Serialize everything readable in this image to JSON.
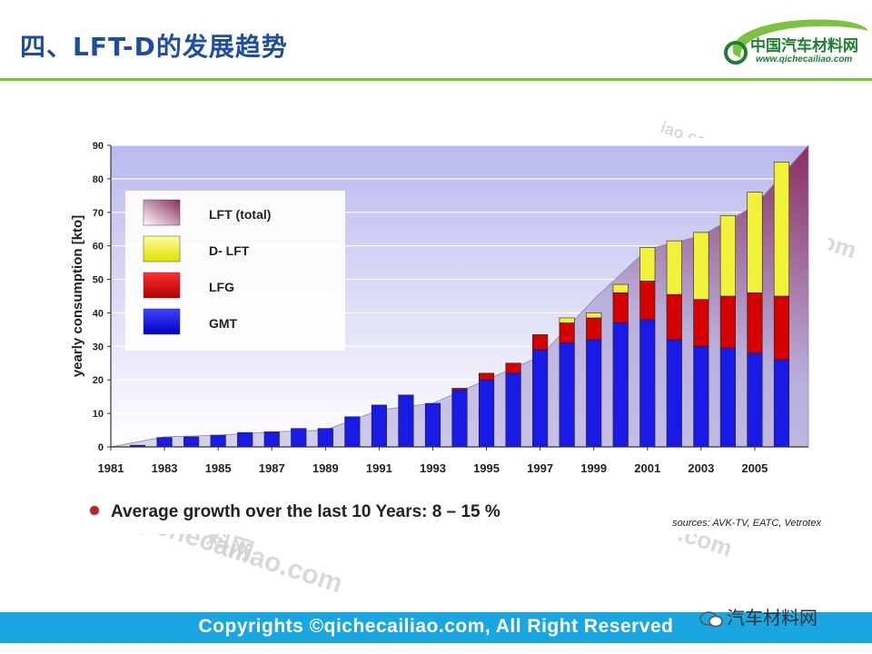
{
  "slide": {
    "title": "四、LFT-D的发展趋势",
    "logo_name": "中国汽车材料网",
    "logo_url": "www.qichecailiao.com",
    "watermarks": [
      "iao.com",
      ".com",
      "iao.com",
      "料网",
      "qichecailiao.com"
    ],
    "footer": "Copyrights ©qichecailiao.com,  All Right Reserved",
    "wechat_label": "汽车材料网"
  },
  "chart_data": {
    "type": "bar",
    "stacked": true,
    "title": "",
    "xlabel": "",
    "ylabel": "yearly consumption [kto]",
    "ylim": [
      0,
      90
    ],
    "yticks": [
      0,
      10,
      20,
      30,
      40,
      50,
      60,
      70,
      80,
      90
    ],
    "grid": true,
    "legend_position": "top-left",
    "categories": [
      "1982",
      "1983",
      "1984",
      "1985",
      "1986",
      "1987",
      "1988",
      "1989",
      "1990",
      "1991",
      "1992",
      "1993",
      "1994",
      "1995",
      "1996",
      "1997",
      "1998",
      "1999",
      "2000",
      "2001",
      "2002",
      "2003",
      "2004",
      "2005",
      "2006"
    ],
    "tick_labels": [
      "1981",
      "1983",
      "1985",
      "1987",
      "1989",
      "1991",
      "1993",
      "1995",
      "1997",
      "1999",
      "2001",
      "2003",
      "2005"
    ],
    "series": [
      {
        "name": "GMT",
        "color": "#1a1ae6",
        "values": [
          0.5,
          2.8,
          3,
          3.5,
          4.3,
          4.5,
          5.5,
          5.5,
          9,
          12.5,
          15.5,
          13,
          17,
          20,
          22,
          29,
          31,
          32,
          37,
          38,
          32,
          30,
          29.5,
          28,
          26
        ]
      },
      {
        "name": "LFG",
        "color": "#d40000",
        "values": [
          0,
          0,
          0,
          0,
          0,
          0,
          0,
          0,
          0,
          0,
          0,
          0,
          0.5,
          2,
          3,
          4.5,
          6,
          6.5,
          9,
          11.5,
          13.5,
          14,
          15.5,
          18,
          19
        ]
      },
      {
        "name": "D- LFT",
        "color": "#f2f23a",
        "values": [
          0,
          0,
          0,
          0,
          0,
          0,
          0,
          0,
          0,
          0,
          0,
          0,
          0,
          0,
          0,
          0,
          1.5,
          1.5,
          2.5,
          10,
          16,
          20,
          24,
          30,
          40
        ]
      }
    ],
    "total_area": {
      "name": "LFT (total)",
      "x": [
        "1981",
        "1983",
        "1985",
        "1987",
        "1989",
        "1991",
        "1993",
        "1995",
        "1997",
        "1999",
        "2001",
        "2003",
        "2005",
        "2007"
      ],
      "values": [
        0,
        3,
        3.5,
        4.5,
        5,
        11,
        13,
        20,
        27,
        44,
        59,
        63,
        72,
        90
      ]
    },
    "annotation": "Average growth over the last 10 Years: 8 – 15 %",
    "source": "sources: AVK-TV, EATC, Vetrotex"
  }
}
